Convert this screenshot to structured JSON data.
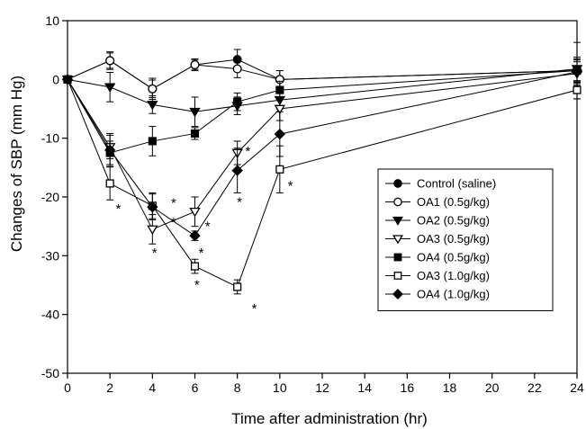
{
  "chart_data": {
    "type": "line",
    "xlabel": "Time after administration (hr)",
    "ylabel": "Changes of SBP (mm Hg)",
    "xlim": [
      0,
      24
    ],
    "ylim": [
      -50,
      10
    ],
    "x_ticks": [
      0,
      2,
      4,
      6,
      8,
      10,
      12,
      14,
      16,
      18,
      20,
      22,
      24
    ],
    "y_ticks": [
      10,
      0,
      -10,
      -20,
      -30,
      -40,
      -50
    ],
    "grid": false,
    "legend_position": "right",
    "x": [
      0,
      2,
      4,
      6,
      8,
      10,
      24
    ],
    "series": [
      {
        "name": "Control (saline)",
        "marker": "filled-circle",
        "values": [
          0,
          3.2,
          -1.6,
          2.5,
          3.4,
          0.0,
          1.5
        ],
        "errors": [
          0,
          1.5,
          1.8,
          1.0,
          1.7,
          1.5,
          4.8
        ]
      },
      {
        "name": "OA1 (0.5g/kg)",
        "marker": "open-circle",
        "values": [
          0,
          3.2,
          -1.6,
          2.5,
          1.8,
          0.0,
          1.5
        ],
        "errors": [
          0,
          1.3,
          1.5,
          0.8,
          1.5,
          1.5,
          2.0
        ]
      },
      {
        "name": "OA2 (0.5g/kg)",
        "marker": "filled-triangle-down",
        "values": [
          0,
          -1.3,
          -4.3,
          -5.5,
          -4.5,
          -3.5,
          1.8
        ],
        "errors": [
          0,
          2.5,
          1.5,
          2.5,
          1.5,
          1.5,
          2.0
        ]
      },
      {
        "name": "OA3 (0.5g/kg)",
        "marker": "open-triangle-down",
        "values": [
          0,
          -11.5,
          -25.5,
          -22.5,
          -12.5,
          -5.0,
          1.0
        ],
        "errors": [
          0,
          2.0,
          2.5,
          2.5,
          2.0,
          2.0,
          2.0
        ]
      },
      {
        "name": "OA4 (0.5g/kg)",
        "marker": "filled-square",
        "values": [
          0,
          -12.5,
          -10.5,
          -9.2,
          -3.8,
          -1.8,
          1.5
        ],
        "errors": [
          0,
          2.0,
          2.5,
          1.0,
          1.5,
          1.5,
          2.0
        ]
      },
      {
        "name": "OA3 (1.0g/kg)",
        "marker": "open-square",
        "values": [
          0,
          -17.7,
          -21.5,
          -31.8,
          -35.3,
          -15.3,
          -1.8
        ],
        "errors": [
          0,
          2.8,
          2.2,
          1.2,
          1.2,
          4.0,
          1.5
        ]
      },
      {
        "name": "OA4 (1.0g/kg)",
        "marker": "filled-diamond",
        "values": [
          0,
          -12.0,
          -21.7,
          -26.6,
          -15.5,
          -9.3,
          1.3
        ],
        "errors": [
          0,
          2.8,
          2.2,
          0.8,
          3.8,
          3.8,
          2.0
        ]
      }
    ],
    "annotations": [
      {
        "text": "*",
        "x": 2.4,
        "y": -21.5
      },
      {
        "text": "*",
        "x": 4.1,
        "y": -29.0
      },
      {
        "text": "*",
        "x": 5.0,
        "y": -20.5
      },
      {
        "text": "*",
        "x": 5.0,
        "y": -23.8
      },
      {
        "text": "*",
        "x": 6.6,
        "y": -24.5
      },
      {
        "text": "*",
        "x": 6.3,
        "y": -29.0
      },
      {
        "text": "*",
        "x": 6.1,
        "y": -34.5
      },
      {
        "text": "*",
        "x": 8.5,
        "y": -11.7
      },
      {
        "text": "*",
        "x": 8.1,
        "y": -20.4
      },
      {
        "text": "*",
        "x": 8.8,
        "y": -38.5
      },
      {
        "text": "*",
        "x": 10.5,
        "y": -17.6
      }
    ]
  }
}
